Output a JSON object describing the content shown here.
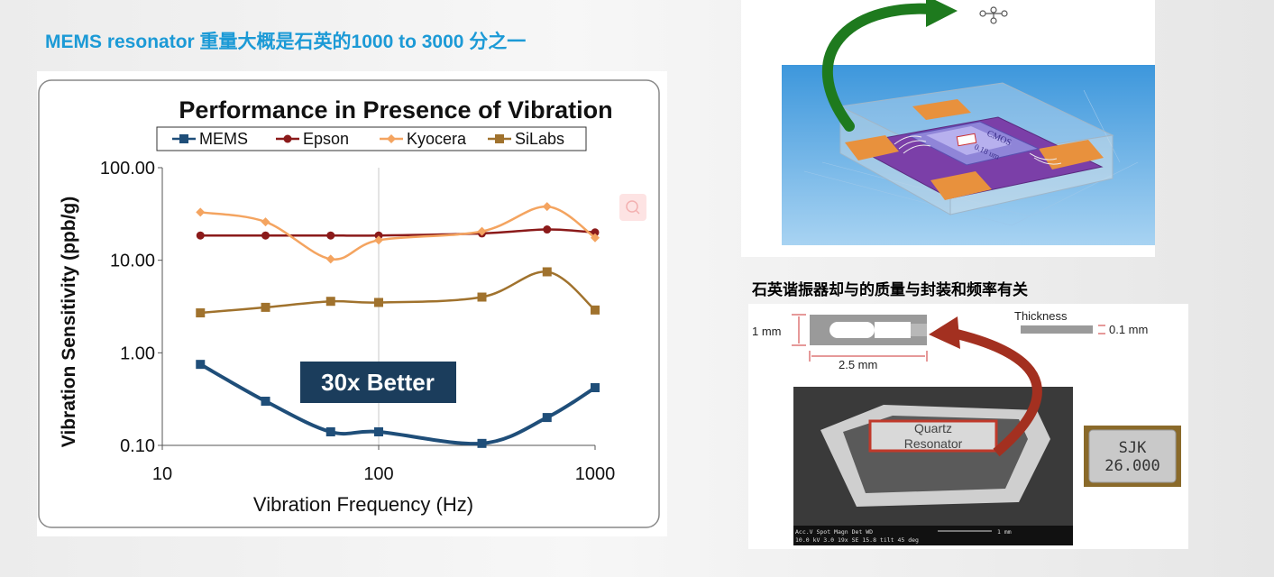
{
  "heading": "MEMS resonator 重量大概是石英的1000 to 3000 分之一",
  "caption_quartz": "石英谐振器却与的质量与封装和频率有关",
  "chart_data": {
    "type": "line",
    "title": "Performance in Presence of Vibration",
    "xlabel": "Vibration Frequency (Hz)",
    "ylabel": "Vibration Sensitivity (ppb/g)",
    "xscale": "log",
    "yscale": "log",
    "xlim": [
      10,
      1000
    ],
    "ylim": [
      0.1,
      100
    ],
    "x_ticks": [
      "10",
      "100",
      "1000"
    ],
    "y_ticks": [
      "0.10",
      "1.00",
      "10.00",
      "100.00"
    ],
    "legend_position": "top",
    "annotation": "30x Better",
    "series": [
      {
        "name": "MEMS",
        "color": "#1f4e79",
        "marker": "square",
        "x": [
          15,
          30,
          60,
          100,
          300,
          600,
          1000
        ],
        "y": [
          0.75,
          0.3,
          0.14,
          0.14,
          0.105,
          0.2,
          0.42
        ]
      },
      {
        "name": "Epson",
        "color": "#8b1a1a",
        "marker": "circle",
        "x": [
          15,
          30,
          60,
          100,
          300,
          600,
          1000
        ],
        "y": [
          18.5,
          18.5,
          18.5,
          18.5,
          19.5,
          21.5,
          20
        ]
      },
      {
        "name": "Kyocera",
        "color": "#f4a460",
        "marker": "diamond",
        "x": [
          15,
          30,
          60,
          100,
          300,
          600,
          1000
        ],
        "y": [
          33,
          26,
          10.3,
          16.5,
          20.5,
          38,
          17.5
        ]
      },
      {
        "name": "SiLabs",
        "color": "#a0722d",
        "marker": "square",
        "x": [
          15,
          30,
          60,
          100,
          300,
          600,
          1000
        ],
        "y": [
          2.7,
          3.1,
          3.6,
          3.5,
          4.0,
          7.5,
          2.9
        ]
      }
    ]
  },
  "mems_image": {
    "die_labels": [
      "CMOS",
      "0.18 um"
    ]
  },
  "quartz_image": {
    "dim_height": "1 mm",
    "dim_width": "2.5 mm",
    "thickness_label": "Thickness",
    "thickness_value": "0.1 mm",
    "sem_label_line1": "Quartz",
    "sem_label_line2": "Resonator",
    "sem_footer_line1": "Acc.V  Spot Magn    Det  WD",
    "sem_footer_line2": "10.0 kV 3.0   19x      SE   15.8   tilt 45 deg",
    "sem_scale": "1 mm",
    "package_text_line1": "SJK",
    "package_text_line2": "26.000"
  },
  "colors": {
    "heading": "#1c9ad6",
    "green_arrow": "#1e7a1e",
    "red_arrow": "#a33020",
    "sky": "#4aa0de"
  }
}
